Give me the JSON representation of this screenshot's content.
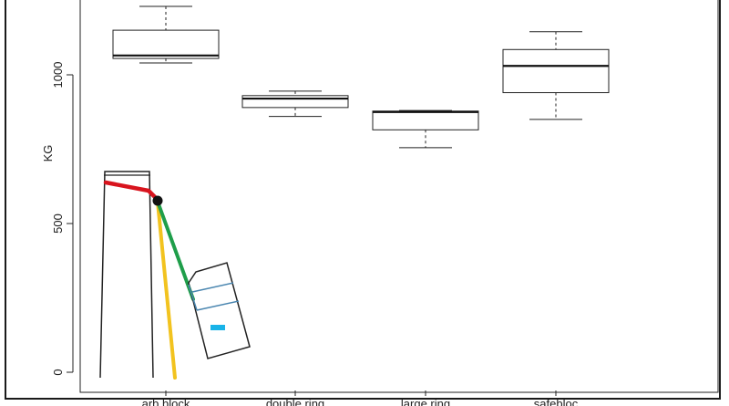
{
  "chart_data": {
    "type": "box",
    "title": "",
    "xlabel": "",
    "ylabel": "KG",
    "ylim": [
      -20,
      1250
    ],
    "yticks": [
      0,
      500,
      1000
    ],
    "ytick_labels": [
      "0",
      "500",
      "1000"
    ],
    "categories": [
      "arb block",
      "double ring",
      "large ring",
      "safebloc"
    ],
    "boxes": [
      {
        "name": "arb block",
        "min": 1040,
        "q1": 1055,
        "median": 1065,
        "q3": 1150,
        "max": 1230
      },
      {
        "name": "double ring",
        "min": 860,
        "q1": 890,
        "median": 920,
        "q3": 930,
        "max": 945
      },
      {
        "name": "large ring",
        "min": 755,
        "q1": 815,
        "median": 875,
        "q3": 878,
        "max": 880
      },
      {
        "name": "safebloc",
        "min": 850,
        "q1": 940,
        "median": 1030,
        "q3": 1085,
        "max": 1145
      }
    ],
    "colors": {
      "axis": "#222222",
      "box": "#222222",
      "red": "#d8141e",
      "yellow": "#f2c31f",
      "green": "#1f9e4a",
      "cyan": "#19b3e8",
      "blue_line": "#4a86b0",
      "frame": "#1a1a1a"
    }
  },
  "overlay": {
    "icons": [
      "anchor-post-icon",
      "knot-icon",
      "rope-icon",
      "device-icon"
    ]
  }
}
